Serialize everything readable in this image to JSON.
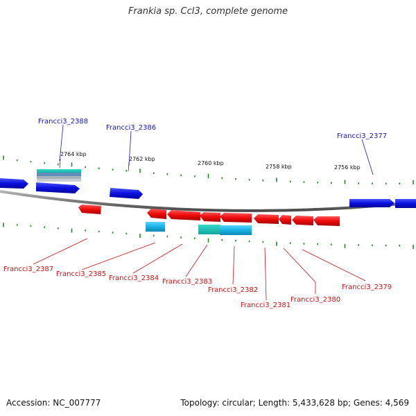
{
  "title": "Frankia sp. CcI3, complete genome",
  "accession": "Accession: NC_007777",
  "summary": "Topology: circular; Length: 5,433,628 bp; Genes: 4,569",
  "colors": {
    "forward_gene": "#0a10dd",
    "reverse_gene": "#ee0a0a",
    "rna_gene": "#1ab2e6",
    "forward_label": "#1515c8",
    "reverse_label": "#cc1111",
    "backbone": "#8a8a8a",
    "ticks": "#1a8a1a"
  },
  "scale_labels": [
    "2764 kbp",
    "2762 kbp",
    "2760 kbp",
    "2758 kbp",
    "2756 kbp"
  ],
  "forward_labels": [
    "Francci3_2388",
    "Francci3_2386",
    "Francci3_2377"
  ],
  "reverse_labels": [
    "Francci3_2387",
    "Francci3_2385",
    "Francci3_2384",
    "Francci3_2383",
    "Francci3_2382",
    "Francci3_2381",
    "Francci3_2380",
    "Francci3_2379"
  ]
}
